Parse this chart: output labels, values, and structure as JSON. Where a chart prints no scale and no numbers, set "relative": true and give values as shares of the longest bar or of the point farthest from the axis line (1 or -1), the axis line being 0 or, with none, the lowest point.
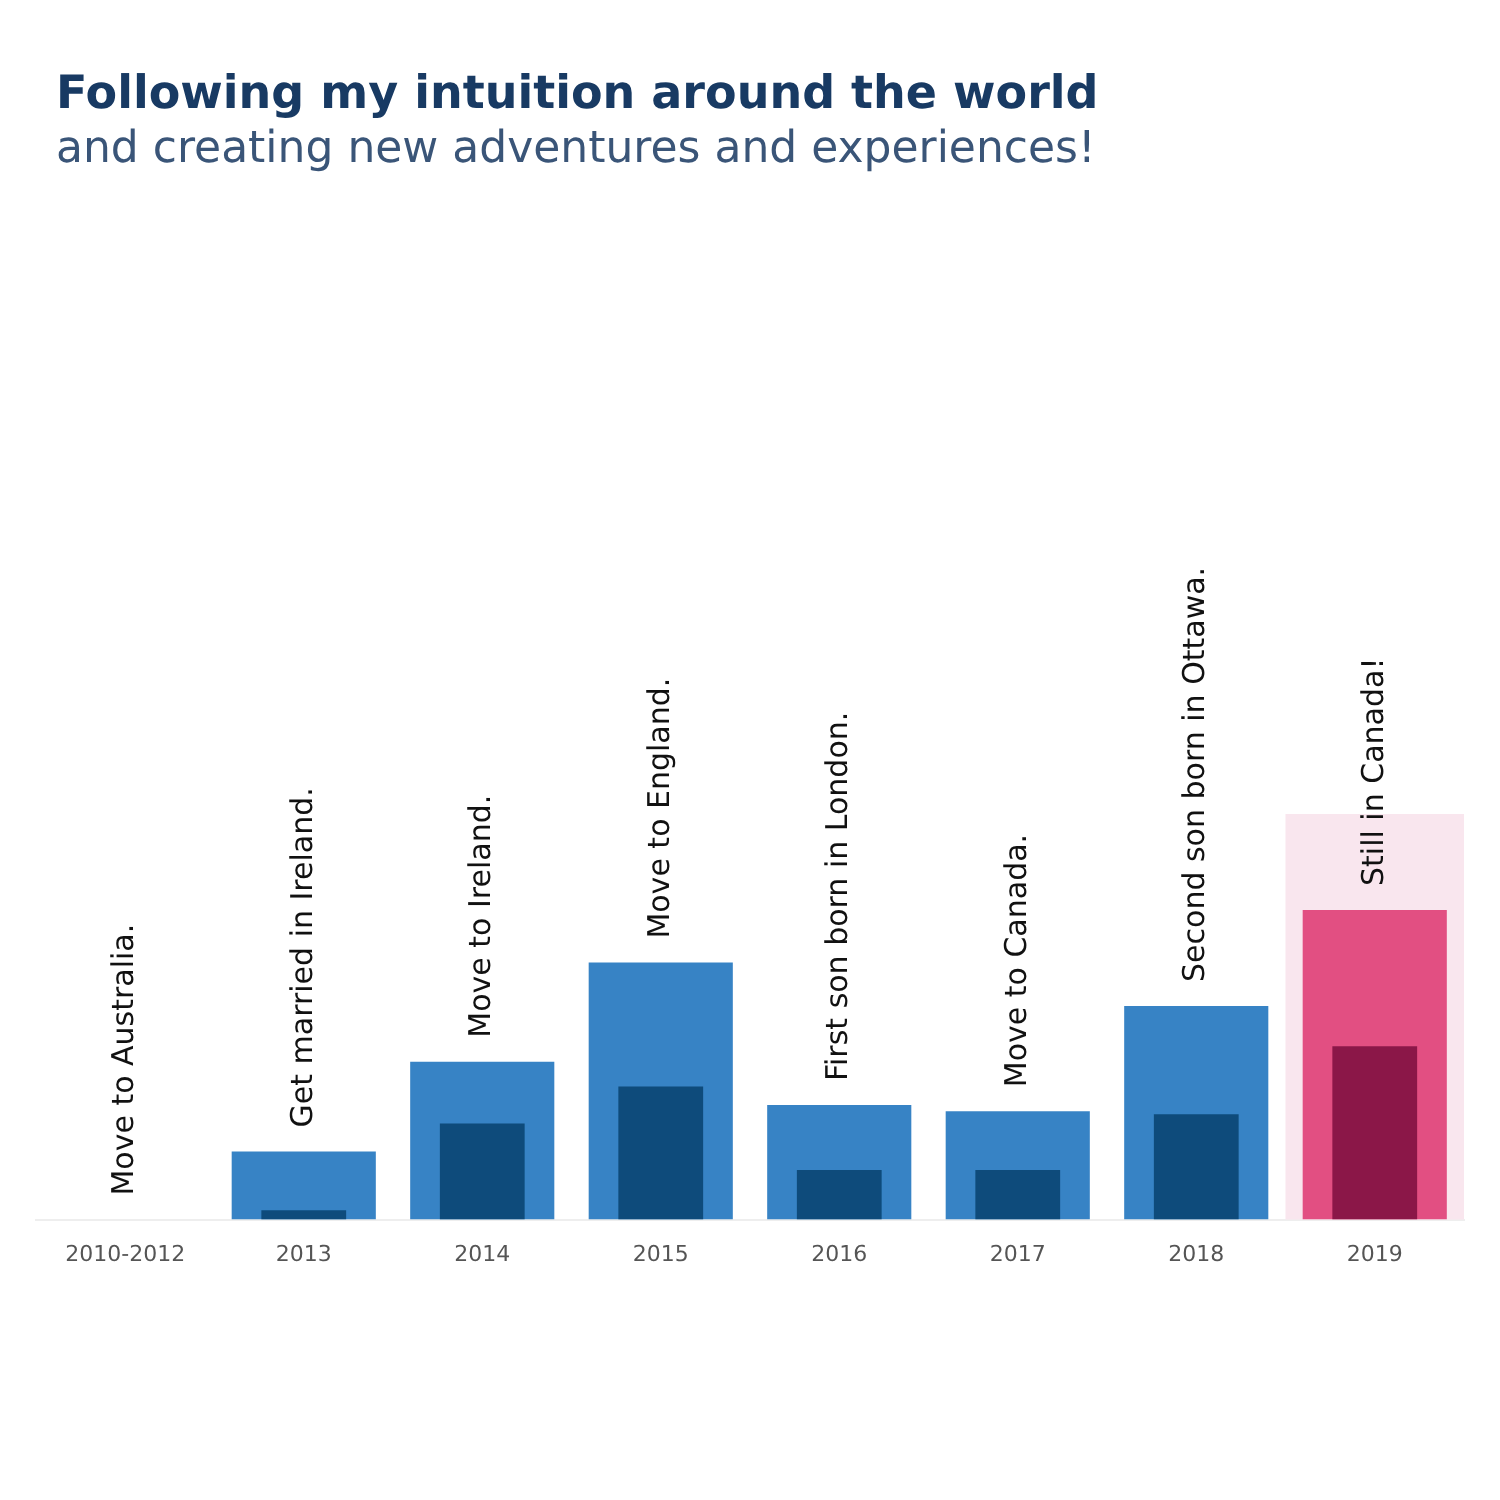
{
  "chart_data": {
    "type": "bar",
    "title": "Following my intuition around the world",
    "subtitle": "and creating new adventures and experiences!",
    "relative": true,
    "legend": false,
    "categories": [
      "2010-2012",
      "2013",
      "2014",
      "2015",
      "2016",
      "2017",
      "2018",
      "2019"
    ],
    "series": [
      {
        "colors": [
          "#3783c5",
          "#3783c5",
          "#3783c5",
          "#3783c5",
          "#3783c5",
          "#3783c5",
          "#3783c5",
          "#e24f82"
        ],
        "values": [
          null,
          0.22,
          0.51,
          0.83,
          0.37,
          0.35,
          0.69,
          1
        ]
      },
      {
        "colors": [
          "#0e4b7b",
          "#0e4b7b",
          "#0e4b7b",
          "#0e4b7b",
          "#0e4b7b",
          "#0e4b7b",
          "#0e4b7b",
          "#8b1748"
        ],
        "values": [
          null,
          0.03,
          0.31,
          0.43,
          0.16,
          0.16,
          0.34,
          0.56
        ]
      }
    ],
    "bands": [
      {
        "axis": "x",
        "from": "2019",
        "to": "2019",
        "color": "#f9e6ee"
      }
    ],
    "annotations": [
      "Move to Australia.",
      "Get married in Ireland.",
      "Move to Ireland.",
      "Move to England.",
      "First son born in London.",
      "Move to Canada.",
      "Second son born in Ottawa.",
      "Still in Canada!"
    ]
  }
}
